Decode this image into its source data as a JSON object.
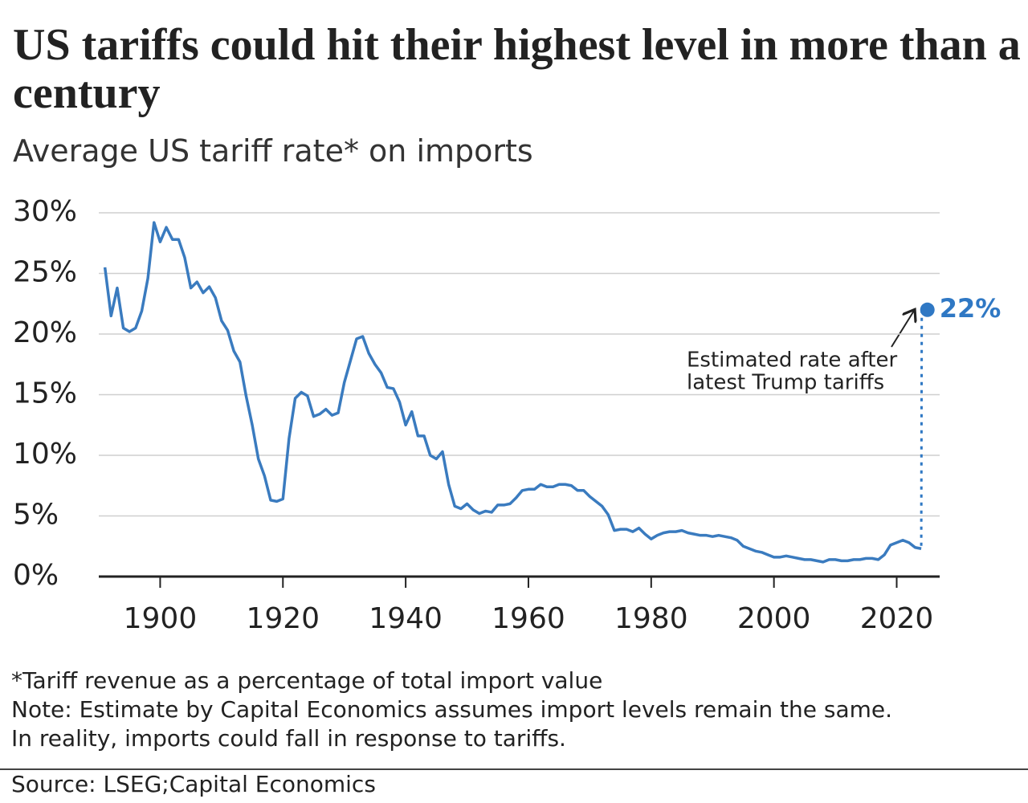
{
  "chart_data": {
    "type": "line",
    "title": "US tariffs could hit their highest level in more than a century",
    "subtitle": "Average US tariff rate* on imports",
    "x": [
      1891,
      1892,
      1893,
      1894,
      1895,
      1896,
      1897,
      1898,
      1899,
      1900,
      1901,
      1902,
      1903,
      1904,
      1905,
      1906,
      1907,
      1908,
      1909,
      1910,
      1911,
      1912,
      1913,
      1914,
      1915,
      1916,
      1917,
      1918,
      1919,
      1920,
      1921,
      1922,
      1923,
      1924,
      1925,
      1926,
      1927,
      1928,
      1929,
      1930,
      1931,
      1932,
      1933,
      1934,
      1935,
      1936,
      1937,
      1938,
      1939,
      1940,
      1941,
      1942,
      1943,
      1944,
      1945,
      1946,
      1947,
      1948,
      1949,
      1950,
      1951,
      1952,
      1953,
      1954,
      1955,
      1956,
      1957,
      1958,
      1959,
      1960,
      1961,
      1962,
      1963,
      1964,
      1965,
      1966,
      1967,
      1968,
      1969,
      1970,
      1971,
      1972,
      1973,
      1974,
      1975,
      1976,
      1977,
      1978,
      1979,
      1980,
      1981,
      1982,
      1983,
      1984,
      1985,
      1986,
      1987,
      1988,
      1989,
      1990,
      1991,
      1992,
      1993,
      1994,
      1995,
      1996,
      1997,
      1998,
      1999,
      2000,
      2001,
      2002,
      2003,
      2004,
      2005,
      2006,
      2007,
      2008,
      2009,
      2010,
      2011,
      2012,
      2013,
      2014,
      2015,
      2016,
      2017,
      2018,
      2019,
      2020,
      2021,
      2022,
      2023,
      2024
    ],
    "values": [
      25.5,
      21.5,
      23.8,
      20.5,
      20.2,
      20.5,
      21.9,
      24.6,
      29.2,
      27.6,
      28.8,
      27.8,
      27.8,
      26.3,
      23.8,
      24.3,
      23.4,
      23.9,
      23.0,
      21.1,
      20.3,
      18.6,
      17.7,
      14.9,
      12.5,
      9.7,
      8.3,
      6.3,
      6.2,
      6.4,
      11.4,
      14.7,
      15.2,
      14.9,
      13.2,
      13.4,
      13.8,
      13.3,
      13.5,
      16.0,
      17.8,
      19.6,
      19.8,
      18.4,
      17.5,
      16.8,
      15.6,
      15.5,
      14.4,
      12.5,
      13.6,
      11.6,
      11.6,
      10.0,
      9.7,
      10.3,
      7.6,
      5.8,
      5.6,
      6.0,
      5.5,
      5.2,
      5.4,
      5.3,
      5.9,
      5.9,
      6.0,
      6.5,
      7.1,
      7.2,
      7.2,
      7.6,
      7.4,
      7.4,
      7.6,
      7.6,
      7.5,
      7.1,
      7.1,
      6.6,
      6.2,
      5.8,
      5.1,
      3.8,
      3.9,
      3.9,
      3.7,
      4.0,
      3.5,
      3.1,
      3.4,
      3.6,
      3.7,
      3.7,
      3.8,
      3.6,
      3.5,
      3.4,
      3.4,
      3.3,
      3.4,
      3.3,
      3.2,
      3.0,
      2.5,
      2.3,
      2.1,
      2.0,
      1.8,
      1.6,
      1.6,
      1.7,
      1.6,
      1.5,
      1.4,
      1.4,
      1.3,
      1.2,
      1.4,
      1.4,
      1.3,
      1.3,
      1.4,
      1.4,
      1.5,
      1.5,
      1.4,
      1.8,
      2.6,
      2.8,
      3.0,
      2.8,
      2.4,
      2.3
    ],
    "color": "#3a7bbf",
    "estimate": {
      "x": 2025,
      "value": 22,
      "value_label": "22%",
      "color": "#2f78c4"
    },
    "annotation": [
      "Estimated rate after",
      "latest Trump tariffs"
    ],
    "xlim": [
      1890,
      2027
    ],
    "xticks": [
      1900,
      1920,
      1940,
      1960,
      1980,
      2000,
      2020
    ],
    "ylim": [
      0,
      30
    ],
    "yticks": [
      {
        "value": 0,
        "label": "0%"
      },
      {
        "value": 5,
        "label": "5%"
      },
      {
        "value": 10,
        "label": "10%"
      },
      {
        "value": 15,
        "label": "15%"
      },
      {
        "value": 20,
        "label": "20%"
      },
      {
        "value": 25,
        "label": "25%"
      },
      {
        "value": 30,
        "label": "30%"
      }
    ],
    "grid": true,
    "notes": [
      "*Tariff revenue as a percentage of total import value",
      "Note: Estimate by Capital Economics assumes import levels remain the same.",
      "In reality, imports could fall in response to tariffs."
    ],
    "source": "Source: LSEG;Capital Economics"
  }
}
